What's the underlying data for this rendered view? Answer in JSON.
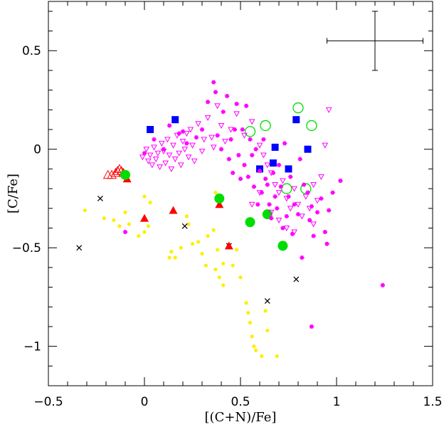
{
  "chart_data": {
    "type": "scatter",
    "title": "",
    "xlabel": "[(C+N)/Fe]",
    "ylabel": "[C/Fe]",
    "xlim": [
      -0.5,
      1.5
    ],
    "ylim": [
      -1.2,
      0.75
    ],
    "x_ticks": [
      -0.5,
      0,
      0.5,
      1,
      1.5
    ],
    "x_tick_labels": [
      "−0.5",
      "0",
      "0.5",
      "1",
      "1.5"
    ],
    "y_ticks": [
      0.5,
      0,
      -0.5,
      -1
    ],
    "y_tick_labels": [
      "0.5",
      "0",
      "−0.5",
      "−1"
    ],
    "grid": false,
    "legend": "none",
    "error_bar": {
      "x": 1.2,
      "y": 0.55,
      "xerr": 0.25,
      "yerr": 0.15
    },
    "series": [
      {
        "marker": "filled-circle-small",
        "color": "#ffee00",
        "points": [
          [
            -0.31,
            -0.31
          ],
          [
            -0.21,
            -0.35
          ],
          [
            -0.16,
            -0.36
          ],
          [
            -0.13,
            -0.39
          ],
          [
            -0.1,
            -0.32
          ],
          [
            -0.08,
            -0.38
          ],
          [
            -0.03,
            -0.44
          ],
          [
            0.0,
            -0.42
          ],
          [
            0.02,
            -0.39
          ],
          [
            0.0,
            -0.24
          ],
          [
            0.03,
            -0.27
          ],
          [
            0.13,
            -0.55
          ],
          [
            0.14,
            -0.52
          ],
          [
            0.16,
            -0.55
          ],
          [
            0.19,
            -0.5
          ],
          [
            0.22,
            -0.34
          ],
          [
            0.23,
            -0.38
          ],
          [
            0.25,
            -0.48
          ],
          [
            0.28,
            -0.47
          ],
          [
            0.3,
            -0.53
          ],
          [
            0.32,
            -0.59
          ],
          [
            0.33,
            -0.44
          ],
          [
            0.36,
            -0.41
          ],
          [
            0.37,
            -0.61
          ],
          [
            0.37,
            -0.22
          ],
          [
            0.38,
            -0.51
          ],
          [
            0.39,
            -0.65
          ],
          [
            0.41,
            -0.69
          ],
          [
            0.41,
            -0.58
          ],
          [
            0.46,
            -0.59
          ],
          [
            0.48,
            -0.51
          ],
          [
            0.5,
            -0.65
          ],
          [
            0.53,
            -0.78
          ],
          [
            0.54,
            -0.83
          ],
          [
            0.55,
            -0.88
          ],
          [
            0.56,
            -0.95
          ],
          [
            0.57,
            -1.0
          ],
          [
            0.58,
            -1.02
          ],
          [
            0.61,
            -1.05
          ],
          [
            0.63,
            -0.82
          ],
          [
            0.64,
            -0.92
          ],
          [
            0.69,
            -1.05
          ]
        ]
      },
      {
        "marker": "cross",
        "color": "#000000",
        "points": [
          [
            -0.34,
            -0.5
          ],
          [
            -0.23,
            -0.25
          ],
          [
            0.21,
            -0.39
          ],
          [
            0.44,
            -0.49
          ],
          [
            0.64,
            -0.77
          ],
          [
            0.79,
            -0.66
          ]
        ]
      },
      {
        "marker": "filled-triangle",
        "color": "#ff0000",
        "points": [
          [
            -0.09,
            -0.15
          ],
          [
            0.0,
            -0.35
          ],
          [
            0.15,
            -0.31
          ],
          [
            0.39,
            -0.28
          ],
          [
            0.44,
            -0.49
          ]
        ]
      },
      {
        "marker": "open-triangle",
        "color": "#ff0000",
        "points": [
          [
            -0.19,
            -0.13
          ],
          [
            -0.17,
            -0.13
          ],
          [
            -0.15,
            -0.12
          ],
          [
            -0.14,
            -0.11
          ],
          [
            -0.13,
            -0.1
          ],
          [
            -0.12,
            -0.11
          ],
          [
            -0.11,
            -0.12
          ]
        ]
      },
      {
        "marker": "filled-circle-large",
        "color": "#00dd00",
        "points": [
          [
            -0.1,
            -0.13
          ],
          [
            0.39,
            -0.25
          ],
          [
            0.55,
            -0.37
          ],
          [
            0.64,
            -0.33
          ],
          [
            0.72,
            -0.49
          ]
        ]
      },
      {
        "marker": "open-circle",
        "color": "#00dd00",
        "points": [
          [
            0.55,
            0.09
          ],
          [
            0.63,
            0.12
          ],
          [
            0.74,
            -0.2
          ],
          [
            0.8,
            0.21
          ],
          [
            0.84,
            -0.2
          ],
          [
            0.87,
            0.12
          ]
        ]
      },
      {
        "marker": "filled-square",
        "color": "#0000ff",
        "points": [
          [
            0.03,
            0.1
          ],
          [
            0.16,
            0.15
          ],
          [
            0.6,
            -0.1
          ],
          [
            0.67,
            -0.07
          ],
          [
            0.68,
            0.01
          ],
          [
            0.75,
            -0.1
          ],
          [
            0.79,
            0.15
          ],
          [
            0.85,
            0.0
          ]
        ]
      },
      {
        "marker": "open-triangle-down",
        "color": "#ff00ff",
        "points": [
          [
            -0.01,
            -0.04
          ],
          [
            0.01,
            0.0
          ],
          [
            0.02,
            -0.06
          ],
          [
            0.03,
            -0.03
          ],
          [
            0.04,
            -0.08
          ],
          [
            0.05,
            0.01
          ],
          [
            0.06,
            -0.05
          ],
          [
            0.07,
            -0.02
          ],
          [
            0.08,
            -0.09
          ],
          [
            0.09,
            0.03
          ],
          [
            0.1,
            -0.01
          ],
          [
            0.11,
            -0.07
          ],
          [
            0.12,
            0.05
          ],
          [
            0.13,
            -0.03
          ],
          [
            0.14,
            -0.1
          ],
          [
            0.15,
            0.02
          ],
          [
            0.16,
            -0.05
          ],
          [
            0.17,
            0.07
          ],
          [
            0.18,
            -0.02
          ],
          [
            0.19,
            -0.08
          ],
          [
            0.2,
            0.04
          ],
          [
            0.21,
            0.0
          ],
          [
            0.22,
            0.08
          ],
          [
            0.23,
            -0.04
          ],
          [
            0.24,
            0.1
          ],
          [
            0.25,
            0.02
          ],
          [
            0.26,
            -0.06
          ],
          [
            0.28,
            0.13
          ],
          [
            0.3,
            -0.01
          ],
          [
            0.31,
            0.05
          ],
          [
            0.33,
            0.16
          ],
          [
            0.35,
            0.06
          ],
          [
            0.36,
            0.01
          ],
          [
            0.38,
            0.22
          ],
          [
            0.4,
            0.12
          ],
          [
            0.42,
            0.04
          ],
          [
            0.45,
            0.1
          ],
          [
            0.48,
            0.18
          ],
          [
            0.52,
            0.07
          ],
          [
            0.56,
            0.14
          ],
          [
            0.6,
            0.02
          ],
          [
            0.62,
            -0.03
          ],
          [
            0.64,
            -0.08
          ],
          [
            0.66,
            -0.12
          ],
          [
            0.68,
            -0.18
          ],
          [
            0.7,
            -0.22
          ],
          [
            0.72,
            -0.16
          ],
          [
            0.74,
            -0.25
          ],
          [
            0.76,
            -0.3
          ],
          [
            0.78,
            -0.2
          ],
          [
            0.8,
            -0.28
          ],
          [
            0.82,
            -0.34
          ],
          [
            0.84,
            -0.24
          ],
          [
            0.86,
            -0.3
          ],
          [
            0.88,
            -0.18
          ],
          [
            0.9,
            -0.26
          ],
          [
            0.92,
            -0.14
          ],
          [
            0.94,
            0.02
          ],
          [
            0.96,
            0.2
          ],
          [
            0.7,
            -0.36
          ],
          [
            0.74,
            -0.4
          ],
          [
            0.78,
            -0.42
          ],
          [
            0.66,
            -0.32
          ],
          [
            0.88,
            -0.38
          ],
          [
            0.6,
            -0.22
          ],
          [
            0.56,
            -0.28
          ]
        ]
      },
      {
        "marker": "star",
        "color": "#ff00ff",
        "points": [
          [
            -0.1,
            -0.42
          ],
          [
            0.0,
            -0.02
          ],
          [
            0.05,
            0.05
          ],
          [
            0.1,
            0.0
          ],
          [
            0.13,
            0.12
          ],
          [
            0.18,
            0.08
          ],
          [
            0.2,
            0.09
          ],
          [
            0.22,
            0.03
          ],
          [
            0.27,
            0.06
          ],
          [
            0.3,
            0.1
          ],
          [
            0.33,
            0.24
          ],
          [
            0.36,
            0.34
          ],
          [
            0.37,
            0.29
          ],
          [
            0.38,
            0.07
          ],
          [
            0.4,
            0.0
          ],
          [
            0.41,
            0.19
          ],
          [
            0.43,
            0.27
          ],
          [
            0.44,
            -0.05
          ],
          [
            0.45,
            0.05
          ],
          [
            0.46,
            -0.12
          ],
          [
            0.47,
            0.1
          ],
          [
            0.48,
            0.23
          ],
          [
            0.49,
            -0.03
          ],
          [
            0.5,
            -0.15
          ],
          [
            0.51,
            0.1
          ],
          [
            0.52,
            -0.08
          ],
          [
            0.53,
            0.22
          ],
          [
            0.54,
            -0.14
          ],
          [
            0.55,
            0.05
          ],
          [
            0.56,
            -0.03
          ],
          [
            0.57,
            -0.19
          ],
          [
            0.58,
            0.0
          ],
          [
            0.59,
            -0.28
          ],
          [
            0.6,
            -0.11
          ],
          [
            0.61,
            -0.22
          ],
          [
            0.62,
            0.05
          ],
          [
            0.63,
            -0.15
          ],
          [
            0.64,
            -0.18
          ],
          [
            0.65,
            -0.28
          ],
          [
            0.66,
            -0.35
          ],
          [
            0.67,
            -0.12
          ],
          [
            0.68,
            -0.24
          ],
          [
            0.69,
            -0.3
          ],
          [
            0.7,
            -0.08
          ],
          [
            0.71,
            -0.19
          ],
          [
            0.72,
            -0.4
          ],
          [
            0.73,
            0.03
          ],
          [
            0.74,
            -0.34
          ],
          [
            0.75,
            -0.24
          ],
          [
            0.76,
            -0.14
          ],
          [
            0.77,
            -0.43
          ],
          [
            0.78,
            -0.28
          ],
          [
            0.8,
            -0.33
          ],
          [
            0.81,
            -0.05
          ],
          [
            0.83,
            -0.18
          ],
          [
            0.85,
            -0.22
          ],
          [
            0.86,
            -0.36
          ],
          [
            0.87,
            -0.29
          ],
          [
            0.88,
            -0.44
          ],
          [
            0.9,
            -0.32
          ],
          [
            0.92,
            -0.25
          ],
          [
            0.94,
            -0.42
          ],
          [
            0.96,
            -0.31
          ],
          [
            0.98,
            -0.22
          ],
          [
            1.02,
            -0.16
          ],
          [
            0.82,
            -0.55
          ],
          [
            0.87,
            -0.9
          ],
          [
            1.24,
            -0.69
          ],
          [
            0.95,
            -0.48
          ]
        ]
      }
    ]
  }
}
